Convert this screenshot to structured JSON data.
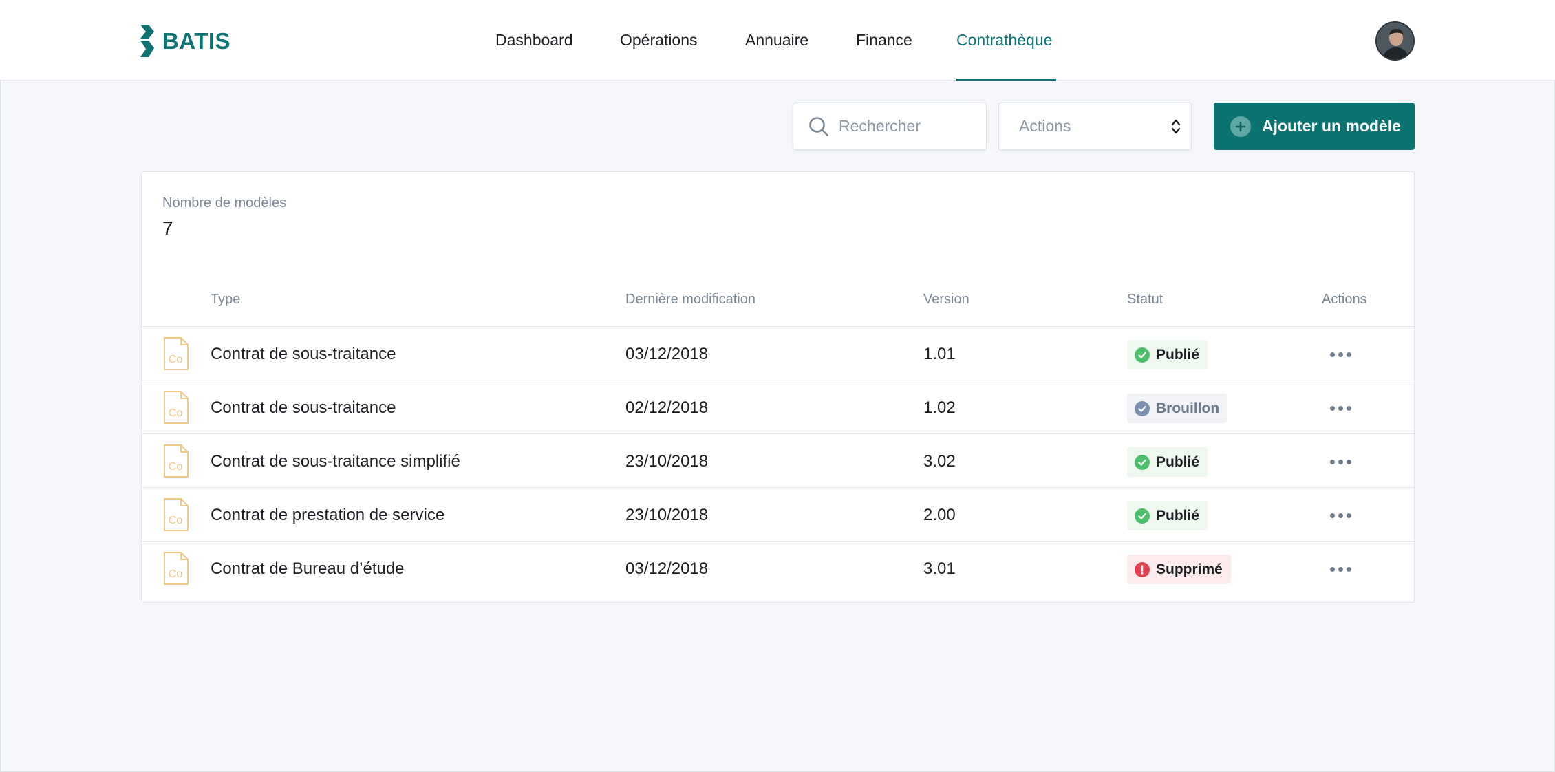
{
  "brand": {
    "name": "BATIS",
    "color": "#0c7373"
  },
  "nav": {
    "items": [
      {
        "label": "Dashboard"
      },
      {
        "label": "Opérations"
      },
      {
        "label": "Annuaire"
      },
      {
        "label": "Finance"
      },
      {
        "label": "Contrathèque",
        "active": true
      }
    ]
  },
  "toolbar": {
    "search_placeholder": "Rechercher",
    "actions_label": "Actions",
    "add_label": "Ajouter un modèle"
  },
  "summary": {
    "count_label": "Nombre de modèles",
    "count_value": "7"
  },
  "table": {
    "columns": [
      "Type",
      "Dernière modification",
      "Version",
      "Statut",
      "Actions"
    ],
    "rows": [
      {
        "icon_text": "Co",
        "type": "Contrat de sous-traitance",
        "modified": "03/12/2018",
        "version": "1.01",
        "status": "Publié",
        "status_kind": "published"
      },
      {
        "icon_text": "Co",
        "type": "Contrat de sous-traitance",
        "modified": "02/12/2018",
        "version": "1.02",
        "status": "Brouillon",
        "status_kind": "draft"
      },
      {
        "icon_text": "Co",
        "type": "Contrat de sous-traitance simplifié",
        "modified": "23/10/2018",
        "version": "3.02",
        "status": "Publié",
        "status_kind": "published"
      },
      {
        "icon_text": "Co",
        "type": "Contrat de prestation de service",
        "modified": "23/10/2018",
        "version": "2.00",
        "status": "Publié",
        "status_kind": "published"
      },
      {
        "icon_text": "Co",
        "type": "Contrat de Bureau d’étude",
        "modified": "03/12/2018",
        "version": "3.01",
        "status": "Supprimé",
        "status_kind": "deleted"
      }
    ]
  },
  "colors": {
    "accent": "#0c7373",
    "published": "#4cbf6a",
    "draft": "#7b8fae",
    "deleted": "#e5404f",
    "doc_icon": "#efc98a"
  }
}
